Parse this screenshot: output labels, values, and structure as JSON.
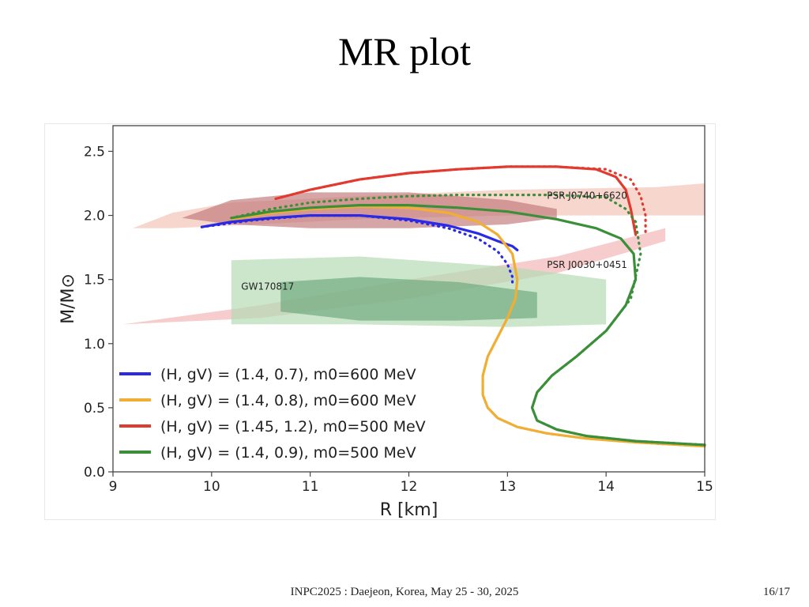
{
  "slide": {
    "title": "MR plot",
    "footer": "INPC2025 : Daejeon, Korea, May 25 - 30, 2025",
    "page": "16/17"
  },
  "chart_data": {
    "type": "line",
    "xlabel": "R [km]",
    "ylabel": "M/M⊙",
    "xlim": [
      9,
      15
    ],
    "ylim": [
      0.0,
      2.7
    ],
    "xticks": [
      "9",
      "10",
      "11",
      "12",
      "13",
      "14",
      "15"
    ],
    "yticks": [
      "0.0",
      "0.5",
      "1.0",
      "1.5",
      "2.0",
      "2.5"
    ],
    "grid": false,
    "legend_position": "lower-left",
    "annotations": [
      "PSR J0740+6620",
      "PSR J0030+0451",
      "GW170817"
    ],
    "series": [
      {
        "name": "(H, gV) = (1.4, 0.7), m0=600 MeV",
        "color": "#2a2ae6",
        "x": [
          9.9,
          10.2,
          10.6,
          11.0,
          11.5,
          12.0,
          12.4,
          12.7,
          12.9,
          13.05,
          13.1
        ],
        "y": [
          1.91,
          1.95,
          1.98,
          2.0,
          2.0,
          1.97,
          1.92,
          1.86,
          1.8,
          1.76,
          1.73
        ],
        "dotted_x": [
          9.9,
          10.4,
          11.0,
          11.5,
          12.0,
          12.4,
          12.7,
          12.9,
          13.0,
          13.05,
          13.05
        ],
        "dotted_y": [
          1.91,
          1.96,
          2.0,
          2.0,
          1.96,
          1.9,
          1.82,
          1.72,
          1.62,
          1.52,
          1.45
        ]
      },
      {
        "name": "(H, gV) = (1.4, 0.8), m0=600 MeV",
        "color": "#f0ae35",
        "x": [
          10.2,
          10.6,
          11.0,
          11.5,
          12.0,
          12.4,
          12.7,
          12.9,
          13.05,
          13.1,
          13.08,
          13.0,
          12.9,
          12.8,
          12.75,
          12.75,
          12.8,
          12.9,
          13.1,
          13.4,
          13.8,
          14.3,
          15.0
        ],
        "y": [
          1.97,
          2.02,
          2.05,
          2.07,
          2.06,
          2.02,
          1.95,
          1.85,
          1.7,
          1.5,
          1.35,
          1.2,
          1.05,
          0.9,
          0.75,
          0.6,
          0.5,
          0.42,
          0.35,
          0.3,
          0.26,
          0.23,
          0.2
        ],
        "dotted_x": [
          10.2,
          10.6,
          11.0,
          11.5,
          12.0,
          12.4,
          12.7,
          12.9,
          13.05,
          13.1,
          13.08,
          13.0,
          12.9,
          12.8,
          12.75,
          12.75,
          12.8,
          12.9,
          13.1,
          13.4,
          13.8,
          14.3,
          15.0
        ],
        "dotted_y": [
          1.97,
          2.02,
          2.05,
          2.07,
          2.06,
          2.02,
          1.95,
          1.85,
          1.7,
          1.5,
          1.35,
          1.2,
          1.05,
          0.9,
          0.75,
          0.6,
          0.5,
          0.42,
          0.35,
          0.3,
          0.26,
          0.23,
          0.2
        ]
      },
      {
        "name": "(H, gV) = (1.45, 1.2), m0=500 MeV",
        "color": "#e23a2e",
        "x": [
          10.65,
          11.0,
          11.5,
          12.0,
          12.5,
          13.0,
          13.5,
          13.9,
          14.1,
          14.2,
          14.25,
          14.3
        ],
        "y": [
          2.13,
          2.2,
          2.28,
          2.33,
          2.36,
          2.38,
          2.38,
          2.36,
          2.3,
          2.2,
          2.05,
          1.85
        ],
        "dotted_x": [
          10.65,
          11.0,
          11.5,
          12.0,
          12.5,
          13.0,
          13.5,
          14.0,
          14.25,
          14.35,
          14.4,
          14.4
        ],
        "dotted_y": [
          2.13,
          2.2,
          2.28,
          2.33,
          2.36,
          2.38,
          2.38,
          2.36,
          2.28,
          2.15,
          2.0,
          1.85
        ]
      },
      {
        "name": "(H, gV) = (1.4, 0.9), m0=500 MeV",
        "color": "#3c8f3a",
        "x": [
          10.2,
          10.6,
          11.0,
          11.5,
          12.0,
          12.5,
          13.0,
          13.5,
          13.9,
          14.15,
          14.28,
          14.3,
          14.2,
          14.0,
          13.7,
          13.45,
          13.3,
          13.25,
          13.3,
          13.5,
          13.8,
          14.3,
          15.0
        ],
        "y": [
          1.98,
          2.03,
          2.06,
          2.08,
          2.08,
          2.06,
          2.03,
          1.97,
          1.9,
          1.82,
          1.7,
          1.5,
          1.3,
          1.1,
          0.9,
          0.75,
          0.62,
          0.5,
          0.4,
          0.33,
          0.28,
          0.24,
          0.21
        ],
        "dotted_x": [
          10.2,
          10.6,
          11.0,
          11.5,
          12.0,
          12.5,
          13.0,
          13.5,
          14.0,
          14.2,
          14.3,
          14.35,
          14.25,
          14.0,
          13.7,
          13.45,
          13.3,
          13.25,
          13.3,
          13.5,
          13.8,
          14.3,
          15.0
        ],
        "dotted_y": [
          1.98,
          2.05,
          2.1,
          2.13,
          2.15,
          2.16,
          2.16,
          2.16,
          2.14,
          2.05,
          1.95,
          1.7,
          1.35,
          1.1,
          0.9,
          0.75,
          0.62,
          0.5,
          0.4,
          0.33,
          0.28,
          0.24,
          0.21
        ]
      }
    ],
    "regions": [
      {
        "name": "PSR J0740+6620 outer",
        "color": "#f4c4b8",
        "opacity": 0.7,
        "x": [
          9.2,
          9.6,
          10.2,
          11.5,
          13.0,
          14.5,
          15.0,
          15.0,
          14.5,
          13.0,
          11.5,
          10.2,
          9.6,
          9.2
        ],
        "y": [
          1.9,
          2.02,
          2.1,
          2.15,
          2.2,
          2.22,
          2.25,
          2.0,
          2.0,
          2.0,
          1.97,
          1.92,
          1.9,
          1.9
        ]
      },
      {
        "name": "PSR J0740+6620 inner",
        "color": "#c07777",
        "opacity": 0.65,
        "x": [
          9.7,
          10.2,
          11.0,
          12.0,
          13.0,
          13.5,
          13.5,
          13.0,
          12.0,
          11.0,
          10.2,
          9.7
        ],
        "y": [
          1.98,
          2.12,
          2.18,
          2.18,
          2.12,
          2.05,
          1.98,
          1.93,
          1.9,
          1.9,
          1.93,
          1.98
        ]
      },
      {
        "name": "PSR J0030+0451",
        "color": "#eea2a2",
        "opacity": 0.55,
        "x": [
          9.1,
          10.5,
          12.0,
          13.5,
          14.6,
          14.6,
          13.5,
          12.0,
          10.5,
          9.1
        ],
        "y": [
          1.15,
          1.3,
          1.5,
          1.68,
          1.9,
          1.8,
          1.55,
          1.35,
          1.2,
          1.15
        ]
      },
      {
        "name": "GW170817 outer",
        "color": "#b5dcb5",
        "opacity": 0.7,
        "x": [
          10.2,
          11.5,
          13.0,
          14.0,
          14.0,
          13.0,
          11.5,
          10.2
        ],
        "y": [
          1.65,
          1.68,
          1.6,
          1.5,
          1.15,
          1.13,
          1.15,
          1.15
        ]
      },
      {
        "name": "GW170817 inner",
        "color": "#6aa77a",
        "opacity": 0.65,
        "x": [
          10.7,
          11.5,
          12.5,
          13.3,
          13.3,
          12.5,
          11.5,
          10.7
        ],
        "y": [
          1.48,
          1.52,
          1.48,
          1.4,
          1.2,
          1.18,
          1.18,
          1.25
        ]
      }
    ]
  }
}
